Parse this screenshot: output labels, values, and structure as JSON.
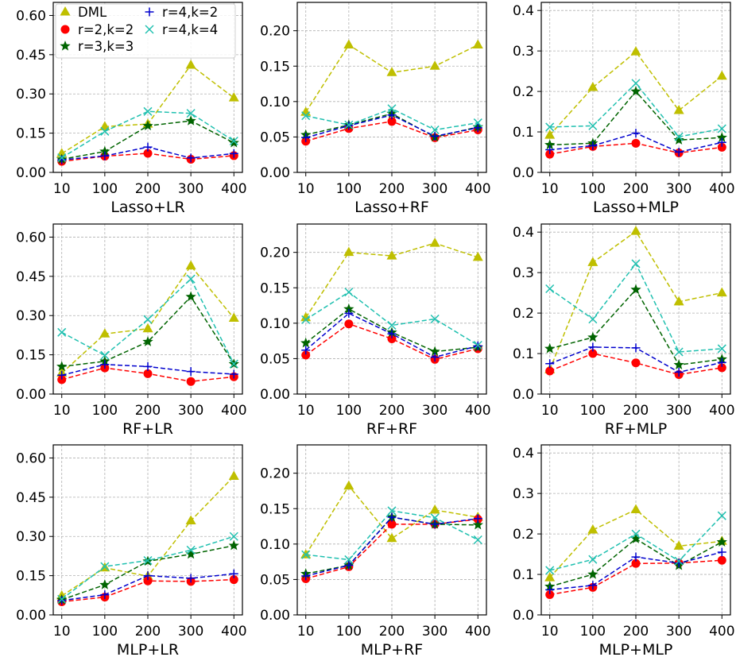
{
  "chart_data": {
    "type": "line",
    "layout": "3x3 grid",
    "legend": {
      "location": "top-left of first panel",
      "entries": [
        "DML",
        "r=2,k=2",
        "r=3,k=3",
        "r=4,k=2",
        "r=4,k=4"
      ]
    },
    "series_styles": [
      {
        "name": "DML",
        "color": "#bfbf00",
        "marker": "triangle"
      },
      {
        "name": "r=2,k=2",
        "color": "#ff0000",
        "marker": "circle"
      },
      {
        "name": "r=3,k=3",
        "color": "#006400",
        "marker": "star"
      },
      {
        "name": "r=4,k=2",
        "color": "#0000cd",
        "marker": "plus"
      },
      {
        "name": "r=4,k=4",
        "color": "#20c0b0",
        "marker": "x"
      }
    ],
    "x": [
      "10",
      "100",
      "200",
      "300",
      "400"
    ],
    "panels": [
      {
        "title": "Lasso+LR",
        "ylim": [
          0,
          0.65
        ],
        "yticks": [
          "0.00",
          "0.15",
          "0.30",
          "0.45",
          "0.60"
        ],
        "ytick_values": [
          0,
          0.15,
          0.3,
          0.45,
          0.6
        ],
        "series": [
          {
            "name": "DML",
            "values": [
              0.072,
              0.175,
              0.185,
              0.41,
              0.285
            ]
          },
          {
            "name": "r=2,k=2",
            "values": [
              0.042,
              0.062,
              0.073,
              0.05,
              0.064
            ]
          },
          {
            "name": "r=3,k=3",
            "values": [
              0.05,
              0.08,
              0.178,
              0.197,
              0.113
            ]
          },
          {
            "name": "r=4,k=2",
            "values": [
              0.048,
              0.063,
              0.097,
              0.055,
              0.072
            ]
          },
          {
            "name": "r=4,k=4",
            "values": [
              0.056,
              0.157,
              0.233,
              0.226,
              0.12
            ]
          }
        ]
      },
      {
        "title": "Lasso+RF",
        "ylim": [
          0,
          0.24
        ],
        "yticks": [
          "0.00",
          "0.05",
          "0.10",
          "0.15",
          "0.20"
        ],
        "ytick_values": [
          0,
          0.05,
          0.1,
          0.15,
          0.2
        ],
        "series": [
          {
            "name": "DML",
            "values": [
              0.085,
              0.18,
              0.141,
              0.15,
              0.18
            ]
          },
          {
            "name": "r=2,k=2",
            "values": [
              0.044,
              0.062,
              0.072,
              0.049,
              0.06
            ]
          },
          {
            "name": "r=3,k=3",
            "values": [
              0.053,
              0.067,
              0.083,
              0.05,
              0.064
            ]
          },
          {
            "name": "r=4,k=2",
            "values": [
              0.049,
              0.066,
              0.081,
              0.051,
              0.063
            ]
          },
          {
            "name": "r=4,k=4",
            "values": [
              0.08,
              0.067,
              0.09,
              0.06,
              0.07
            ]
          }
        ]
      },
      {
        "title": "Lasso+MLP",
        "ylim": [
          0,
          0.42
        ],
        "yticks": [
          "0.0",
          "0.1",
          "0.2",
          "0.3",
          "0.4"
        ],
        "ytick_values": [
          0,
          0.1,
          0.2,
          0.3,
          0.4
        ],
        "series": [
          {
            "name": "DML",
            "values": [
              0.092,
              0.21,
              0.298,
              0.153,
              0.238
            ]
          },
          {
            "name": "r=2,k=2",
            "values": [
              0.045,
              0.064,
              0.072,
              0.048,
              0.062
            ]
          },
          {
            "name": "r=3,k=3",
            "values": [
              0.068,
              0.072,
              0.2,
              0.08,
              0.086
            ]
          },
          {
            "name": "r=4,k=2",
            "values": [
              0.056,
              0.066,
              0.097,
              0.05,
              0.074
            ]
          },
          {
            "name": "r=4,k=4",
            "values": [
              0.112,
              0.115,
              0.22,
              0.088,
              0.108
            ]
          }
        ]
      },
      {
        "title": "RF+LR",
        "ylim": [
          0,
          0.65
        ],
        "yticks": [
          "0.00",
          "0.15",
          "0.30",
          "0.45",
          "0.60"
        ],
        "ytick_values": [
          0,
          0.15,
          0.3,
          0.45,
          0.6
        ],
        "series": [
          {
            "name": "DML",
            "values": [
              0.08,
              0.23,
              0.25,
              0.49,
              0.29
            ]
          },
          {
            "name": "r=2,k=2",
            "values": [
              0.055,
              0.1,
              0.078,
              0.048,
              0.066
            ]
          },
          {
            "name": "r=3,k=3",
            "values": [
              0.105,
              0.125,
              0.2,
              0.372,
              0.115
            ]
          },
          {
            "name": "r=4,k=2",
            "values": [
              0.072,
              0.113,
              0.105,
              0.086,
              0.076
            ]
          },
          {
            "name": "r=4,k=4",
            "values": [
              0.236,
              0.148,
              0.285,
              0.44,
              0.115
            ]
          }
        ]
      },
      {
        "title": "RF+RF",
        "ylim": [
          0,
          0.24
        ],
        "yticks": [
          "0.00",
          "0.05",
          "0.10",
          "0.15",
          "0.20"
        ],
        "ytick_values": [
          0,
          0.05,
          0.1,
          0.15,
          0.2
        ],
        "series": [
          {
            "name": "DML",
            "values": [
              0.108,
              0.2,
              0.195,
              0.213,
              0.193
            ]
          },
          {
            "name": "r=2,k=2",
            "values": [
              0.055,
              0.099,
              0.078,
              0.049,
              0.064
            ]
          },
          {
            "name": "r=3,k=3",
            "values": [
              0.072,
              0.12,
              0.087,
              0.06,
              0.066
            ]
          },
          {
            "name": "r=4,k=2",
            "values": [
              0.062,
              0.114,
              0.085,
              0.052,
              0.068
            ]
          },
          {
            "name": "r=4,k=4",
            "values": [
              0.105,
              0.144,
              0.097,
              0.106,
              0.069
            ]
          }
        ]
      },
      {
        "title": "RF+MLP",
        "ylim": [
          0,
          0.42
        ],
        "yticks": [
          "0.0",
          "0.1",
          "0.2",
          "0.3",
          "0.4"
        ],
        "ytick_values": [
          0,
          0.1,
          0.2,
          0.3,
          0.4
        ],
        "series": [
          {
            "name": "DML",
            "values": [
              0.06,
              0.325,
              0.402,
              0.228,
              0.25
            ]
          },
          {
            "name": "r=2,k=2",
            "values": [
              0.057,
              0.1,
              0.077,
              0.048,
              0.065
            ]
          },
          {
            "name": "r=3,k=3",
            "values": [
              0.112,
              0.14,
              0.258,
              0.072,
              0.086
            ]
          },
          {
            "name": "r=4,k=2",
            "values": [
              0.075,
              0.116,
              0.114,
              0.054,
              0.078
            ]
          },
          {
            "name": "r=4,k=4",
            "values": [
              0.26,
              0.185,
              0.322,
              0.104,
              0.112
            ]
          }
        ]
      },
      {
        "title": "MLP+LR",
        "ylim": [
          0,
          0.65
        ],
        "yticks": [
          "0.00",
          "0.15",
          "0.30",
          "0.45",
          "0.60"
        ],
        "ytick_values": [
          0,
          0.15,
          0.3,
          0.45,
          0.6
        ],
        "series": [
          {
            "name": "DML",
            "values": [
              0.073,
              0.18,
              0.148,
              0.36,
              0.53
            ]
          },
          {
            "name": "r=2,k=2",
            "values": [
              0.05,
              0.068,
              0.13,
              0.128,
              0.135
            ]
          },
          {
            "name": "r=3,k=3",
            "values": [
              0.058,
              0.115,
              0.205,
              0.232,
              0.265
            ]
          },
          {
            "name": "r=4,k=2",
            "values": [
              0.055,
              0.077,
              0.15,
              0.14,
              0.157
            ]
          },
          {
            "name": "r=4,k=4",
            "values": [
              0.06,
              0.185,
              0.208,
              0.248,
              0.3
            ]
          }
        ]
      },
      {
        "title": "MLP+RF",
        "ylim": [
          0,
          0.24
        ],
        "yticks": [
          "0.00",
          "0.05",
          "0.10",
          "0.15",
          "0.20"
        ],
        "ytick_values": [
          0,
          0.05,
          0.1,
          0.15,
          0.2
        ],
        "series": [
          {
            "name": "DML",
            "values": [
              0.085,
              0.182,
              0.108,
              0.148,
              0.138
            ]
          },
          {
            "name": "r=2,k=2",
            "values": [
              0.051,
              0.068,
              0.128,
              0.128,
              0.135
            ]
          },
          {
            "name": "r=3,k=3",
            "values": [
              0.058,
              0.07,
              0.138,
              0.128,
              0.127
            ]
          },
          {
            "name": "r=4,k=2",
            "values": [
              0.055,
              0.07,
              0.138,
              0.128,
              0.136
            ]
          },
          {
            "name": "r=4,k=4",
            "values": [
              0.085,
              0.078,
              0.147,
              0.137,
              0.106
            ]
          }
        ]
      },
      {
        "title": "MLP+MLP",
        "ylim": [
          0,
          0.42
        ],
        "yticks": [
          "0.0",
          "0.1",
          "0.2",
          "0.3",
          "0.4"
        ],
        "ytick_values": [
          0,
          0.1,
          0.2,
          0.3,
          0.4
        ],
        "series": [
          {
            "name": "DML",
            "values": [
              0.092,
              0.21,
              0.26,
              0.17,
              0.182
            ]
          },
          {
            "name": "r=2,k=2",
            "values": [
              0.05,
              0.068,
              0.127,
              0.128,
              0.135
            ]
          },
          {
            "name": "r=3,k=3",
            "values": [
              0.07,
              0.1,
              0.188,
              0.122,
              0.18
            ]
          },
          {
            "name": "r=4,k=2",
            "values": [
              0.062,
              0.073,
              0.143,
              0.128,
              0.155
            ]
          },
          {
            "name": "r=4,k=4",
            "values": [
              0.11,
              0.137,
              0.2,
              0.133,
              0.245
            ]
          }
        ]
      }
    ]
  }
}
